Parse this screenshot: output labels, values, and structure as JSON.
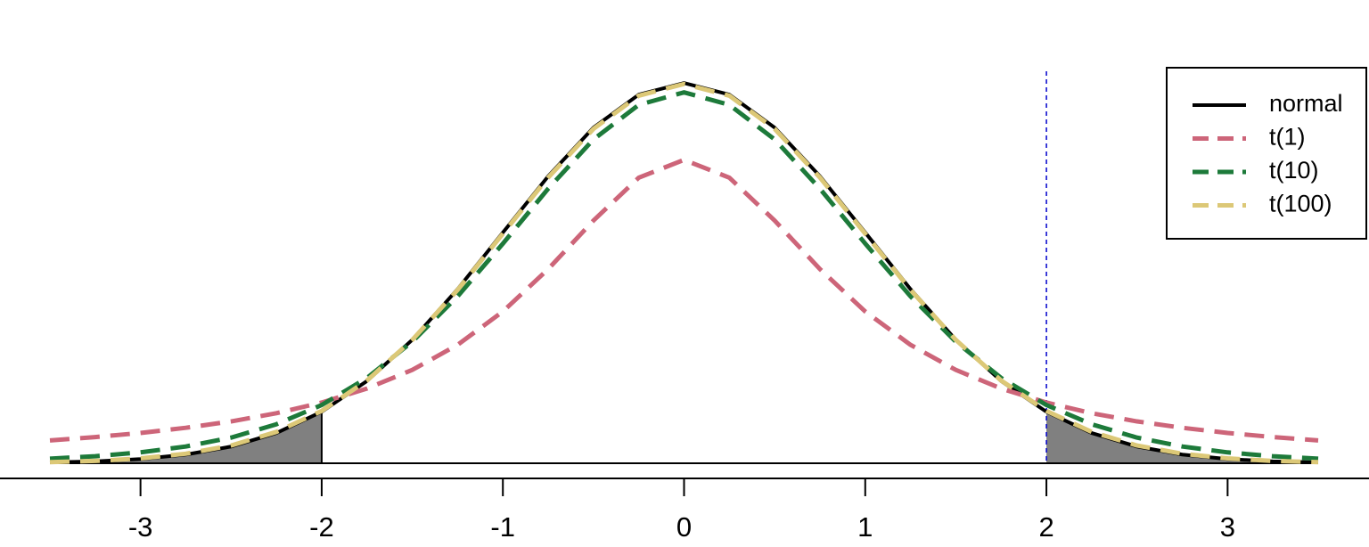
{
  "chart_data": {
    "type": "line",
    "x": [
      -3.5,
      -3.25,
      -3,
      -2.75,
      -2.5,
      -2.25,
      -2,
      -1.75,
      -1.5,
      -1.25,
      -1,
      -0.75,
      -0.5,
      -0.25,
      0,
      0.25,
      0.5,
      0.75,
      1,
      1.25,
      1.5,
      1.75,
      2,
      2.25,
      2.5,
      2.75,
      3,
      3.25,
      3.5
    ],
    "series": [
      {
        "name": "normal",
        "color": "#000000",
        "dashed": false,
        "values": [
          0.0009,
          0.002,
          0.0044,
          0.0091,
          0.0175,
          0.0317,
          0.054,
          0.0863,
          0.1295,
          0.1826,
          0.242,
          0.3011,
          0.3521,
          0.3867,
          0.3989,
          0.3867,
          0.3521,
          0.3011,
          0.242,
          0.1826,
          0.1295,
          0.0863,
          0.054,
          0.0317,
          0.0175,
          0.0091,
          0.0044,
          0.002,
          0.0009
        ]
      },
      {
        "name": "t(1)",
        "color": "#cd6579",
        "dashed": true,
        "values": [
          0.024,
          0.0275,
          0.0318,
          0.0372,
          0.0439,
          0.0525,
          0.0637,
          0.0784,
          0.0979,
          0.1242,
          0.1592,
          0.2037,
          0.2546,
          0.2996,
          0.3183,
          0.2996,
          0.2546,
          0.2037,
          0.1592,
          0.1242,
          0.0979,
          0.0784,
          0.0637,
          0.0525,
          0.0439,
          0.0372,
          0.0318,
          0.0275,
          0.024
        ]
      },
      {
        "name": "t(10)",
        "color": "#1d7a3a",
        "dashed": true,
        "values": [
          0.0048,
          0.0074,
          0.0114,
          0.0176,
          0.0269,
          0.0409,
          0.0611,
          0.0895,
          0.1275,
          0.1751,
          0.2304,
          0.288,
          0.3397,
          0.376,
          0.3891,
          0.376,
          0.3397,
          0.288,
          0.2304,
          0.1751,
          0.1275,
          0.0895,
          0.0611,
          0.0409,
          0.0269,
          0.0176,
          0.0114,
          0.0074,
          0.0048
        ]
      },
      {
        "name": "t(100)",
        "color": "#dcc877",
        "dashed": true,
        "values": [
          0.0012,
          0.0024,
          0.0051,
          0.01,
          0.0186,
          0.0329,
          0.0549,
          0.0868,
          0.1294,
          0.1818,
          0.2408,
          0.2997,
          0.3508,
          0.3856,
          0.3979,
          0.3856,
          0.3508,
          0.2997,
          0.2408,
          0.1818,
          0.1294,
          0.0868,
          0.0549,
          0.0329,
          0.0186,
          0.01,
          0.0051,
          0.0024,
          0.0012
        ]
      }
    ],
    "xlim": [
      -3.5,
      3.5
    ],
    "xticks": [
      -3,
      -2,
      -1,
      0,
      1,
      2,
      3
    ],
    "ylim": [
      0,
      0.4
    ],
    "critical_value": 2,
    "shade_color": "#808080",
    "vline_color": "#0000cc",
    "legend": "top-right"
  }
}
